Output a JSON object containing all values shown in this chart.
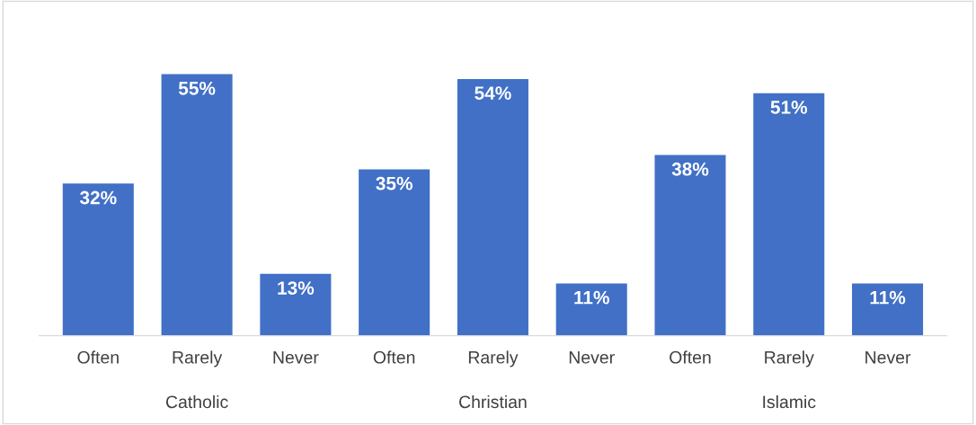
{
  "chart_data": {
    "type": "bar",
    "categories": [
      "Often",
      "Rarely",
      "Never",
      "Often",
      "Rarely",
      "Never",
      "Often",
      "Rarely",
      "Never"
    ],
    "values": [
      32,
      55,
      13,
      35,
      54,
      11,
      38,
      51,
      11
    ],
    "value_labels": [
      "32%",
      "55%",
      "13%",
      "35%",
      "54%",
      "11%",
      "38%",
      "51%",
      "11%"
    ],
    "color": "#4170c6",
    "annotations": [
      "Catholic",
      "Christian",
      "Islamic"
    ],
    "grid": false,
    "legend": false
  }
}
